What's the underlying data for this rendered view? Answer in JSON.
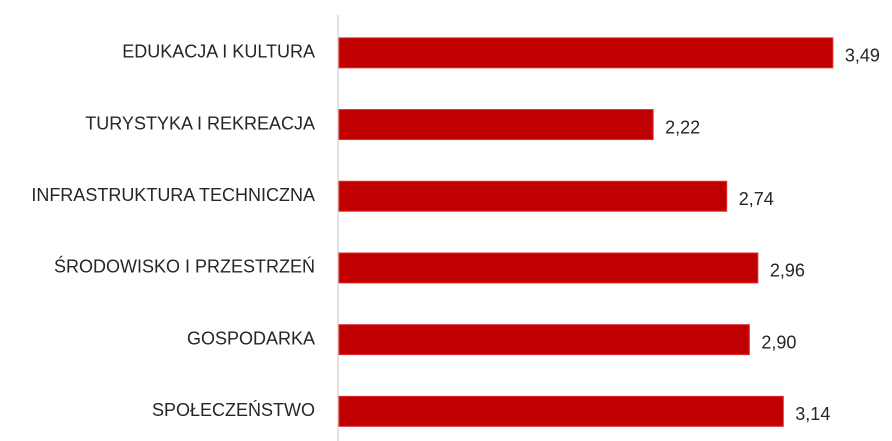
{
  "chart_data": {
    "type": "bar",
    "orientation": "horizontal",
    "categories": [
      "EDUKACJA I KULTURA",
      "TURYSTYKA I REKREACJA",
      "INFRASTRUKTURA TECHNICZNA",
      "ŚRODOWISKO I PRZESTRZEŃ",
      "GOSPODARKA",
      "SPOŁECZEŃSTWO"
    ],
    "values": [
      3.49,
      2.22,
      2.74,
      2.96,
      2.9,
      3.14
    ],
    "value_labels": [
      "3,49",
      "2,22",
      "2,74",
      "2,96",
      "2,90",
      "3,14"
    ],
    "color": "#c00000"
  }
}
